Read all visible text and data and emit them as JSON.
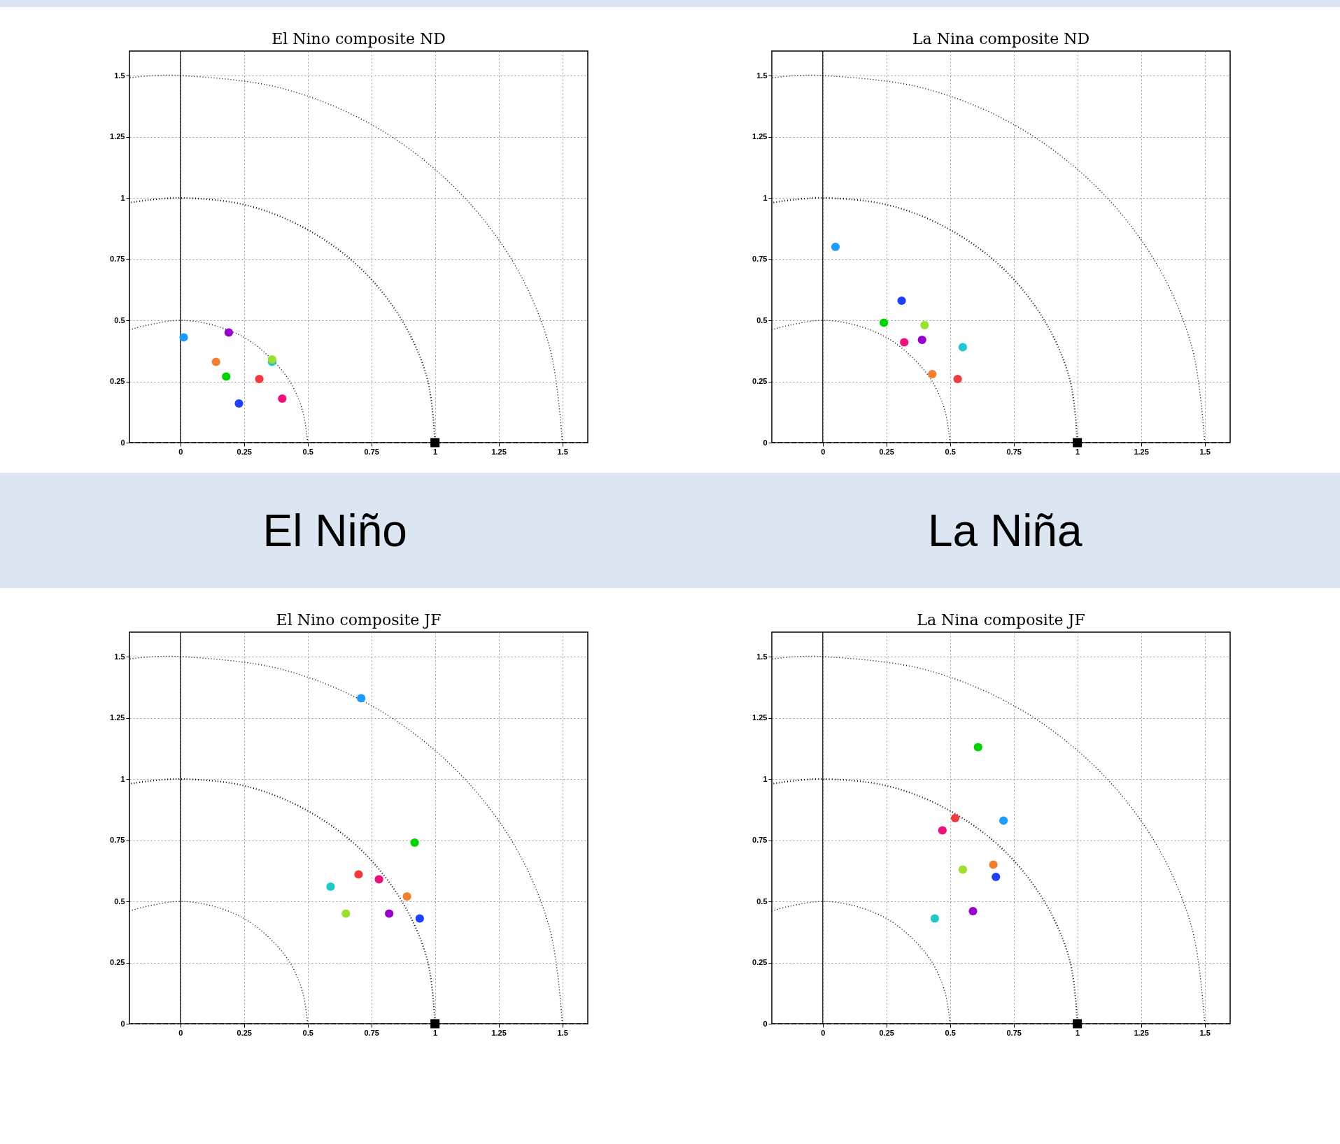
{
  "chart_data": [
    {
      "type": "scatter",
      "title": "El Nino composite   ND",
      "xlim": [
        -0.2,
        1.6
      ],
      "ylim": [
        0,
        1.6
      ],
      "xticks": [
        0,
        0.25,
        0.5,
        0.75,
        1,
        1.25,
        1.5
      ],
      "yticks": [
        0,
        0.25,
        0.5,
        0.75,
        1,
        1.25,
        1.5
      ],
      "grid": true,
      "annotations": [
        "El Niño"
      ],
      "ref_lines": [
        {
          "axis": "x",
          "value": 0,
          "color": "#000000",
          "line_style": "solid"
        },
        {
          "axis": "y",
          "value": 0,
          "color": "#000000",
          "line_style": "dashed"
        }
      ],
      "series": [
        {
          "type": "scatter",
          "marker": "circle",
          "x": [
            0.013,
            0.19,
            0.14,
            0.18,
            0.36,
            0.36,
            0.31,
            0.4,
            0.23
          ],
          "values": [
            0.43,
            0.45,
            0.33,
            0.27,
            0.34,
            0.33,
            0.26,
            0.18,
            0.16
          ],
          "colors": [
            "#1e9bff",
            "#9900cc",
            "#f08030",
            "#00d400",
            "#9ae030",
            "#20c8c8",
            "#f03c3c",
            "#f0107a",
            "#2040ff"
          ]
        },
        {
          "type": "scatter",
          "marker": "square",
          "color": "#000000",
          "x": [
            1
          ],
          "values": [
            0
          ]
        },
        {
          "type": "line",
          "line_style": "dotted",
          "color": "#000000",
          "x": [
            0.5,
            0.48,
            0.43,
            0.35,
            0.25,
            0.13,
            0,
            -0.13,
            -0.2
          ],
          "values": [
            0,
            0.13,
            0.25,
            0.35,
            0.43,
            0.48,
            0.5,
            0.48,
            0.46
          ]
        },
        {
          "type": "line",
          "line_style": "dotted",
          "color": "#000000",
          "x": [
            1,
            0.97,
            0.87,
            0.71,
            0.5,
            0.26,
            0,
            -0.2
          ],
          "values": [
            0,
            0.26,
            0.5,
            0.71,
            0.87,
            0.97,
            1,
            0.98
          ]
        },
        {
          "type": "line",
          "line_style": "dotted",
          "color": "#000000",
          "x": [
            1.5,
            1.45,
            1.3,
            1.06,
            0.75,
            0.39,
            0,
            -0.2
          ],
          "values": [
            0,
            0.39,
            0.75,
            1.06,
            1.3,
            1.45,
            1.5,
            1.49
          ]
        }
      ]
    },
    {
      "type": "scatter",
      "title": "La Nina composite   ND",
      "xlim": [
        -0.2,
        1.6
      ],
      "ylim": [
        0,
        1.6
      ],
      "xticks": [
        0,
        0.25,
        0.5,
        0.75,
        1,
        1.25,
        1.5
      ],
      "yticks": [
        0,
        0.25,
        0.5,
        0.75,
        1,
        1.25,
        1.5
      ],
      "grid": true,
      "annotations": [
        "La Niña"
      ],
      "ref_lines": [
        {
          "axis": "x",
          "value": 0,
          "color": "#000000",
          "line_style": "solid"
        },
        {
          "axis": "y",
          "value": 0,
          "color": "#000000",
          "line_style": "dashed"
        }
      ],
      "series": [
        {
          "type": "scatter",
          "marker": "circle",
          "x": [
            0.05,
            0.39,
            0.43,
            0.24,
            0.4,
            0.55,
            0.53,
            0.32,
            0.31
          ],
          "values": [
            0.8,
            0.42,
            0.28,
            0.49,
            0.48,
            0.39,
            0.26,
            0.41,
            0.58
          ],
          "colors": [
            "#1e9bff",
            "#9900cc",
            "#f08030",
            "#00d400",
            "#9ae030",
            "#20c8c8",
            "#f03c3c",
            "#f0107a",
            "#2040ff"
          ]
        },
        {
          "type": "scatter",
          "marker": "square",
          "color": "#000000",
          "x": [
            1
          ],
          "values": [
            0
          ]
        },
        {
          "type": "line",
          "line_style": "dotted",
          "color": "#000000",
          "x": [
            0.5,
            0.48,
            0.43,
            0.35,
            0.25,
            0.13,
            0,
            -0.13,
            -0.2
          ],
          "values": [
            0,
            0.13,
            0.25,
            0.35,
            0.43,
            0.48,
            0.5,
            0.48,
            0.46
          ]
        },
        {
          "type": "line",
          "line_style": "dotted",
          "color": "#000000",
          "x": [
            1,
            0.97,
            0.87,
            0.71,
            0.5,
            0.26,
            0,
            -0.2
          ],
          "values": [
            0,
            0.26,
            0.5,
            0.71,
            0.87,
            0.97,
            1,
            0.98
          ]
        },
        {
          "type": "line",
          "line_style": "dotted",
          "color": "#000000",
          "x": [
            1.5,
            1.45,
            1.3,
            1.06,
            0.75,
            0.39,
            0,
            -0.2
          ],
          "values": [
            0,
            0.39,
            0.75,
            1.06,
            1.3,
            1.45,
            1.5,
            1.49
          ]
        }
      ]
    },
    {
      "type": "scatter",
      "title": "El Nino composite   JF",
      "xlim": [
        -0.2,
        1.6
      ],
      "ylim": [
        0,
        1.6
      ],
      "xticks": [
        0,
        0.25,
        0.5,
        0.75,
        1,
        1.25,
        1.5
      ],
      "yticks": [
        0,
        0.25,
        0.5,
        0.75,
        1,
        1.25,
        1.5
      ],
      "grid": true,
      "ref_lines": [
        {
          "axis": "x",
          "value": 0,
          "color": "#000000",
          "line_style": "solid"
        },
        {
          "axis": "y",
          "value": 0,
          "color": "#000000",
          "line_style": "dashed"
        }
      ],
      "series": [
        {
          "type": "scatter",
          "marker": "circle",
          "x": [
            0.71,
            0.82,
            0.89,
            0.92,
            0.65,
            0.59,
            0.7,
            0.78,
            0.94
          ],
          "values": [
            1.33,
            0.45,
            0.52,
            0.74,
            0.45,
            0.56,
            0.61,
            0.59,
            0.43
          ],
          "colors": [
            "#1e9bff",
            "#9900cc",
            "#f08030",
            "#00d400",
            "#9ae030",
            "#20c8c8",
            "#f03c3c",
            "#f0107a",
            "#2040ff"
          ]
        },
        {
          "type": "scatter",
          "marker": "square",
          "color": "#000000",
          "x": [
            1
          ],
          "values": [
            0
          ]
        },
        {
          "type": "line",
          "line_style": "dotted",
          "color": "#000000",
          "x": [
            0.5,
            0.48,
            0.43,
            0.35,
            0.25,
            0.13,
            0,
            -0.13,
            -0.2
          ],
          "values": [
            0,
            0.13,
            0.25,
            0.35,
            0.43,
            0.48,
            0.5,
            0.48,
            0.46
          ]
        },
        {
          "type": "line",
          "line_style": "dotted",
          "color": "#000000",
          "x": [
            1,
            0.97,
            0.87,
            0.71,
            0.5,
            0.26,
            0,
            -0.2
          ],
          "values": [
            0,
            0.26,
            0.5,
            0.71,
            0.87,
            0.97,
            1,
            0.98
          ]
        },
        {
          "type": "line",
          "line_style": "dotted",
          "color": "#000000",
          "x": [
            1.5,
            1.45,
            1.3,
            1.06,
            0.75,
            0.39,
            0,
            -0.2
          ],
          "values": [
            0,
            0.39,
            0.75,
            1.06,
            1.3,
            1.45,
            1.5,
            1.49
          ]
        }
      ]
    },
    {
      "type": "scatter",
      "title": "La Nina composite   JF",
      "xlim": [
        -0.2,
        1.6
      ],
      "ylim": [
        0,
        1.6
      ],
      "xticks": [
        0,
        0.25,
        0.5,
        0.75,
        1,
        1.25,
        1.5
      ],
      "yticks": [
        0,
        0.25,
        0.5,
        0.75,
        1,
        1.25,
        1.5
      ],
      "grid": true,
      "ref_lines": [
        {
          "axis": "x",
          "value": 0,
          "color": "#000000",
          "line_style": "solid"
        },
        {
          "axis": "y",
          "value": 0,
          "color": "#000000",
          "line_style": "dashed"
        }
      ],
      "series": [
        {
          "type": "scatter",
          "marker": "circle",
          "x": [
            0.71,
            0.59,
            0.67,
            0.61,
            0.55,
            0.44,
            0.52,
            0.47,
            0.68
          ],
          "values": [
            0.83,
            0.46,
            0.65,
            1.13,
            0.63,
            0.43,
            0.84,
            0.79,
            0.6
          ],
          "colors": [
            "#1e9bff",
            "#9900cc",
            "#f08030",
            "#00d400",
            "#9ae030",
            "#20c8c8",
            "#f03c3c",
            "#f0107a",
            "#2040ff"
          ]
        },
        {
          "type": "scatter",
          "marker": "square",
          "color": "#000000",
          "x": [
            1
          ],
          "values": [
            0
          ]
        },
        {
          "type": "line",
          "line_style": "dotted",
          "color": "#000000",
          "x": [
            0.5,
            0.48,
            0.43,
            0.35,
            0.25,
            0.13,
            0,
            -0.13,
            -0.2
          ],
          "values": [
            0,
            0.13,
            0.25,
            0.35,
            0.43,
            0.48,
            0.5,
            0.48,
            0.46
          ]
        },
        {
          "type": "line",
          "line_style": "dotted",
          "color": "#000000",
          "x": [
            1,
            0.97,
            0.87,
            0.71,
            0.5,
            0.26,
            0,
            -0.2
          ],
          "values": [
            0,
            0.26,
            0.5,
            0.71,
            0.87,
            0.97,
            1,
            0.98
          ]
        },
        {
          "type": "line",
          "line_style": "dotted",
          "color": "#000000",
          "x": [
            1.5,
            1.45,
            1.3,
            1.06,
            0.75,
            0.39,
            0,
            -0.2
          ],
          "values": [
            0,
            0.39,
            0.75,
            1.06,
            1.3,
            1.45,
            1.5,
            1.49
          ]
        }
      ]
    }
  ]
}
